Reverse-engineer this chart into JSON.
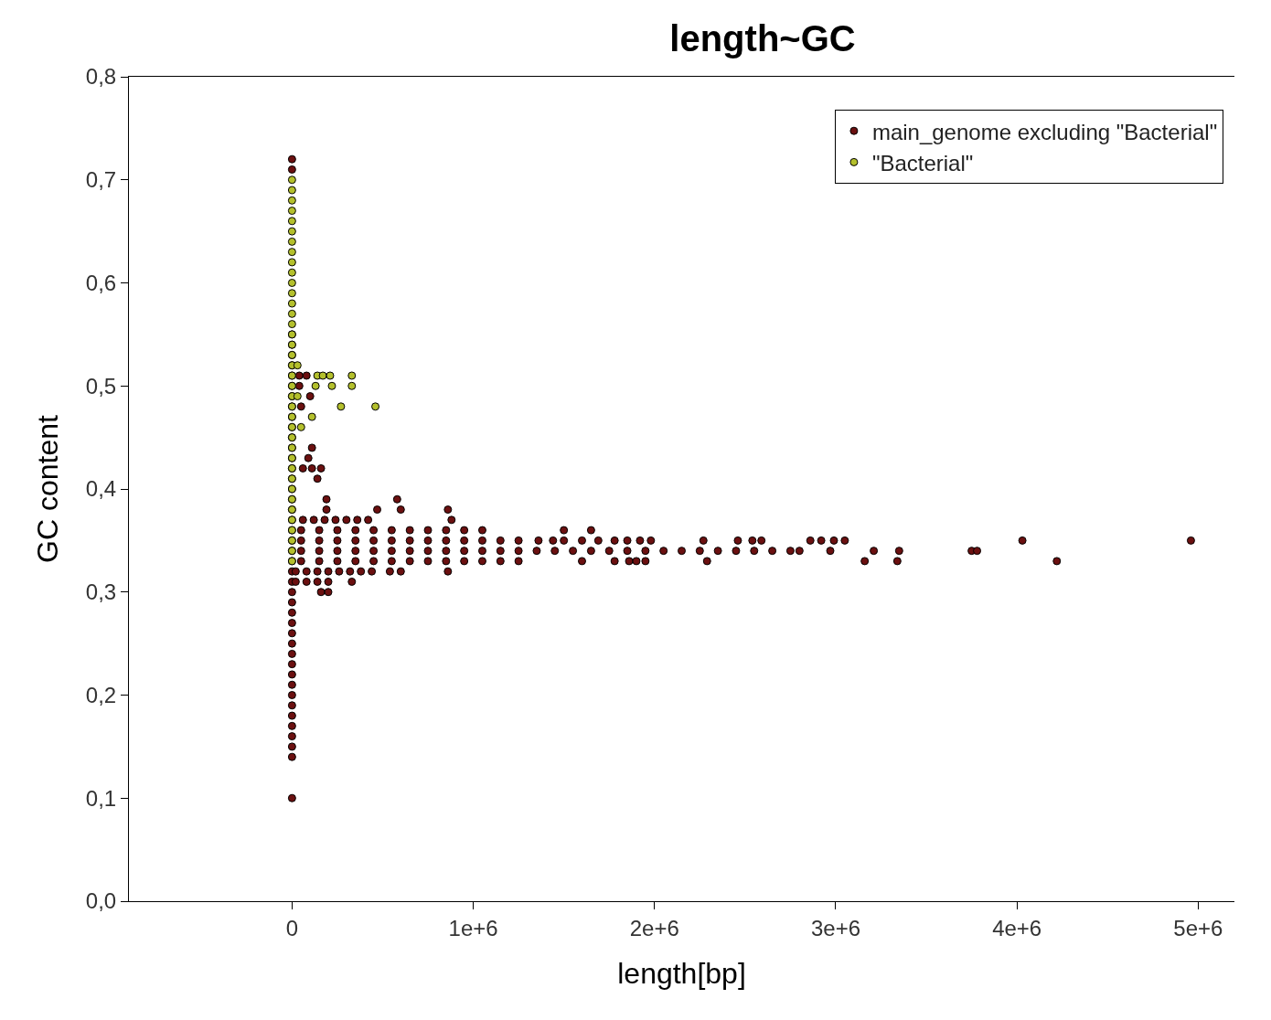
{
  "chart_data": {
    "type": "scatter",
    "title": "length~GC",
    "xlabel": "length[bp]",
    "ylabel": "GC content",
    "xlim": [
      -900000,
      5200000
    ],
    "ylim": [
      0,
      0.8
    ],
    "xticks": [
      0,
      {
        "value": 1000000,
        "label": "1e+6"
      },
      {
        "value": 2000000,
        "label": "2e+6"
      },
      {
        "value": 3000000,
        "label": "3e+6"
      },
      {
        "value": 4000000,
        "label": "4e+6"
      },
      {
        "value": 5000000,
        "label": "5e+6"
      }
    ],
    "yticks": [
      {
        "value": 0,
        "label": "0,0"
      },
      {
        "value": 0.1,
        "label": "0,1"
      },
      {
        "value": 0.2,
        "label": "0,2"
      },
      {
        "value": 0.3,
        "label": "0,3"
      },
      {
        "value": 0.4,
        "label": "0,4"
      },
      {
        "value": 0.5,
        "label": "0,5"
      },
      {
        "value": 0.6,
        "label": "0,6"
      },
      {
        "value": 0.7,
        "label": "0,7"
      },
      {
        "value": 0.8,
        "label": "0,8"
      }
    ],
    "legend": "top right",
    "marker": "circle",
    "series": [
      {
        "name": "main_genome excluding \"Bacterial\"",
        "color": "#6b1010",
        "x": [
          0,
          0,
          0,
          0,
          0,
          0,
          0,
          0,
          0,
          0,
          0,
          0,
          0,
          0,
          0,
          0,
          0,
          0,
          0,
          0,
          0,
          0,
          0,
          0,
          0,
          0,
          0,
          0,
          0,
          0,
          0,
          0,
          0,
          0,
          0,
          0,
          0,
          0,
          0,
          0,
          0,
          0,
          0,
          0,
          0,
          50000,
          150000,
          250000,
          350000,
          450000,
          550000,
          650000,
          750000,
          850000,
          950000,
          1050000,
          1150000,
          1250000,
          1350000,
          1450000,
          1550000,
          1650000,
          1750000,
          1850000,
          1950000,
          2050000,
          2150000,
          2250000,
          2350000,
          2450000,
          2550000,
          2650000,
          2750000,
          2800000,
          2970000,
          3210000,
          3350000,
          3750000,
          3780000,
          50000,
          150000,
          250000,
          350000,
          450000,
          550000,
          650000,
          750000,
          850000,
          950000,
          1050000,
          1150000,
          1250000,
          1360000,
          1440000,
          1500000,
          1600000,
          1690000,
          1780000,
          1850000,
          1920000,
          1980000,
          2270000,
          2460000,
          2540000,
          2590000,
          2860000,
          2920000,
          2990000,
          3050000,
          4030000,
          4960000,
          50000,
          150000,
          250000,
          350000,
          450000,
          550000,
          650000,
          750000,
          850000,
          950000,
          1050000,
          1150000,
          1250000,
          1600000,
          1780000,
          1860000,
          1900000,
          1950000,
          2290000,
          3160000,
          3340000,
          4220000,
          50000,
          150000,
          250000,
          350000,
          450000,
          550000,
          650000,
          750000,
          850000,
          950000,
          1050000,
          1500000,
          1650000,
          60000,
          120000,
          180000,
          240000,
          300000,
          360000,
          420000,
          880000,
          20000,
          80000,
          140000,
          200000,
          260000,
          320000,
          380000,
          440000,
          540000,
          600000,
          860000,
          20000,
          80000,
          140000,
          200000,
          330000,
          160000,
          200000,
          100000,
          110000,
          90000,
          60000,
          110000,
          160000,
          140000,
          190000,
          580000,
          190000,
          470000,
          600000,
          860000,
          80000,
          40000,
          40000,
          50000
        ],
        "values": [
          0.1,
          0.14,
          0.15,
          0.16,
          0.17,
          0.18,
          0.19,
          0.2,
          0.21,
          0.22,
          0.23,
          0.24,
          0.25,
          0.26,
          0.27,
          0.28,
          0.29,
          0.3,
          0.31,
          0.32,
          0.33,
          0.34,
          0.35,
          0.36,
          0.37,
          0.38,
          0.39,
          0.4,
          0.41,
          0.42,
          0.43,
          0.44,
          0.45,
          0.46,
          0.47,
          0.48,
          0.49,
          0.5,
          0.51,
          0.52,
          0.53,
          0.54,
          0.55,
          0.71,
          0.72,
          0.34,
          0.34,
          0.34,
          0.34,
          0.34,
          0.34,
          0.34,
          0.34,
          0.34,
          0.34,
          0.34,
          0.34,
          0.34,
          0.34,
          0.34,
          0.34,
          0.34,
          0.34,
          0.34,
          0.34,
          0.34,
          0.34,
          0.34,
          0.34,
          0.34,
          0.34,
          0.34,
          0.34,
          0.34,
          0.34,
          0.34,
          0.34,
          0.34,
          0.34,
          0.35,
          0.35,
          0.35,
          0.35,
          0.35,
          0.35,
          0.35,
          0.35,
          0.35,
          0.35,
          0.35,
          0.35,
          0.35,
          0.35,
          0.35,
          0.35,
          0.35,
          0.35,
          0.35,
          0.35,
          0.35,
          0.35,
          0.35,
          0.35,
          0.35,
          0.35,
          0.35,
          0.35,
          0.35,
          0.35,
          0.35,
          0.35,
          0.33,
          0.33,
          0.33,
          0.33,
          0.33,
          0.33,
          0.33,
          0.33,
          0.33,
          0.33,
          0.33,
          0.33,
          0.33,
          0.33,
          0.33,
          0.33,
          0.33,
          0.33,
          0.33,
          0.33,
          0.33,
          0.33,
          0.36,
          0.36,
          0.36,
          0.36,
          0.36,
          0.36,
          0.36,
          0.36,
          0.36,
          0.36,
          0.36,
          0.36,
          0.36,
          0.37,
          0.37,
          0.37,
          0.37,
          0.37,
          0.37,
          0.37,
          0.37,
          0.32,
          0.32,
          0.32,
          0.32,
          0.32,
          0.32,
          0.32,
          0.32,
          0.32,
          0.32,
          0.32,
          0.31,
          0.31,
          0.31,
          0.31,
          0.31,
          0.3,
          0.3,
          0.49,
          0.44,
          0.43,
          0.42,
          0.42,
          0.42,
          0.41,
          0.39,
          0.39,
          0.38,
          0.38,
          0.38,
          0.38,
          0.51,
          0.51,
          0.5,
          0.48
        ]
      },
      {
        "name": "\"Bacterial\"",
        "color": "#b4c02c",
        "x": [
          0,
          0,
          0,
          0,
          0,
          0,
          0,
          0,
          0,
          0,
          0,
          0,
          0,
          0,
          0,
          0,
          0,
          0,
          0,
          0,
          0,
          0,
          0,
          0,
          0,
          0,
          0,
          0,
          0,
          0,
          0,
          0,
          0,
          0,
          0,
          0,
          0,
          0,
          140000,
          170000,
          210000,
          330000,
          130000,
          220000,
          330000,
          270000,
          460000,
          110000,
          50000,
          30000,
          30000
        ],
        "values": [
          0.33,
          0.34,
          0.35,
          0.36,
          0.37,
          0.38,
          0.39,
          0.4,
          0.41,
          0.42,
          0.43,
          0.44,
          0.45,
          0.46,
          0.47,
          0.48,
          0.49,
          0.5,
          0.51,
          0.52,
          0.53,
          0.54,
          0.55,
          0.56,
          0.57,
          0.58,
          0.59,
          0.6,
          0.61,
          0.62,
          0.63,
          0.64,
          0.65,
          0.66,
          0.67,
          0.68,
          0.69,
          0.7,
          0.51,
          0.51,
          0.51,
          0.51,
          0.5,
          0.5,
          0.5,
          0.48,
          0.48,
          0.47,
          0.46,
          0.52,
          0.49
        ]
      }
    ]
  }
}
